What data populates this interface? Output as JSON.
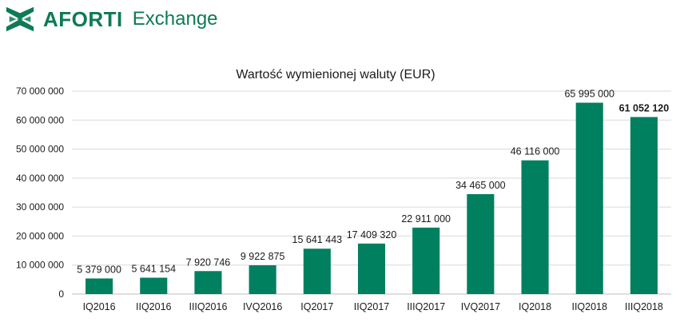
{
  "brand": {
    "name": "AFORTI",
    "sub": "Exchange",
    "color": "#0e7a56"
  },
  "chart_data": {
    "type": "bar",
    "title": "Wartość wymienionej waluty (EUR)",
    "xlabel": "",
    "ylabel": "",
    "ylim": [
      0,
      70000000
    ],
    "y_ticks": [
      0,
      10000000,
      20000000,
      30000000,
      40000000,
      50000000,
      60000000,
      70000000
    ],
    "y_tick_labels": [
      "0",
      "10 000 000",
      "20 000 000",
      "30 000 000",
      "40 000 000",
      "50 000 000",
      "60 000 000",
      "70 000 000"
    ],
    "grid": true,
    "bar_color": "#00805e",
    "categories": [
      "IQ2016",
      "IIQ2016",
      "IIIQ2016",
      "IVQ2016",
      "IQ2017",
      "IIQ2017",
      "IIIQ2017",
      "IVQ2017",
      "IQ2018",
      "IIQ2018",
      "IIIQ2018"
    ],
    "values": [
      5379000,
      5641154,
      7920746,
      9922875,
      15641443,
      17409320,
      22911000,
      34465000,
      46116000,
      65995000,
      61052120
    ],
    "data_labels": [
      "5 379 000",
      "5 641 154",
      "7 920 746",
      "9 922 875",
      "15 641 443",
      "17 409 320",
      "22 911 000",
      "34 465 000",
      "46 116 000",
      "65 995 000",
      "61 052 120"
    ],
    "bold_labels": [
      false,
      false,
      false,
      false,
      false,
      false,
      false,
      false,
      false,
      false,
      true
    ]
  }
}
